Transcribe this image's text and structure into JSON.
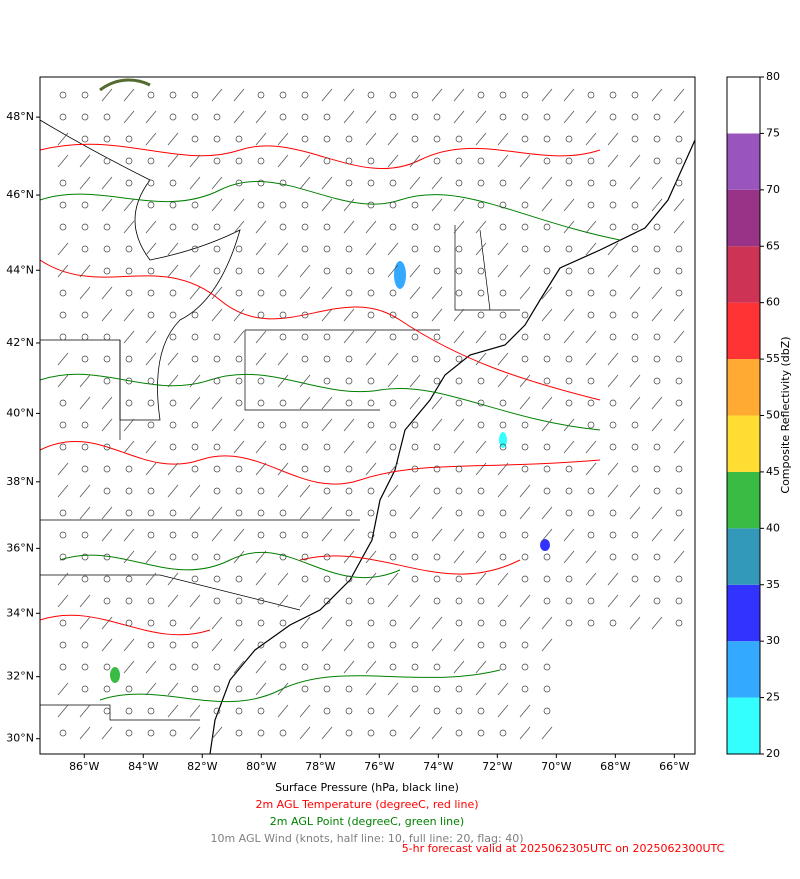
{
  "map": {
    "xlim": [
      -87.5,
      -65.3
    ],
    "ylim": [
      29.5,
      49
    ],
    "xticks": [
      {
        "value": -86,
        "label": "86°W"
      },
      {
        "value": -84,
        "label": "84°W"
      },
      {
        "value": -82,
        "label": "82°W"
      },
      {
        "value": -80,
        "label": "80°W"
      },
      {
        "value": -78,
        "label": "78°W"
      },
      {
        "value": -76,
        "label": "76°W"
      },
      {
        "value": -74,
        "label": "74°W"
      },
      {
        "value": -72,
        "label": "72°W"
      },
      {
        "value": -70,
        "label": "70°W"
      },
      {
        "value": -68,
        "label": "68°W"
      },
      {
        "value": -66,
        "label": "66°W"
      }
    ],
    "yticks": [
      {
        "value": 30,
        "label": "30°N"
      },
      {
        "value": 32,
        "label": "32°N"
      },
      {
        "value": 34,
        "label": "34°N"
      },
      {
        "value": 36,
        "label": "36°N"
      },
      {
        "value": 38,
        "label": "38°N"
      },
      {
        "value": 40,
        "label": "40°N"
      },
      {
        "value": 42,
        "label": "42°N"
      },
      {
        "value": 44,
        "label": "44°N"
      },
      {
        "value": 46,
        "label": "46°N"
      },
      {
        "value": 48,
        "label": "48°N"
      }
    ]
  },
  "colorbar": {
    "label": "Composite Reflectivity (dbZ)",
    "ticks": [
      20,
      25,
      30,
      35,
      40,
      45,
      50,
      55,
      60,
      65,
      70,
      75,
      80
    ],
    "colors": [
      "#33ffff",
      "#33aaff",
      "#3333ff",
      "#3399bb",
      "#39bb44",
      "#ffdd33",
      "#ffaa33",
      "#ff3333",
      "#cc3355",
      "#993388",
      "#9955bb",
      "#ffffff"
    ]
  },
  "captions": [
    {
      "text": "Surface Pressure (hPa, black line)",
      "color": "#000000"
    },
    {
      "text": "2m AGL Temperature (degreeC, red line)",
      "color": "#ff0000"
    },
    {
      "text": "2m AGL Point (degreeC, green line)",
      "color": "#008000"
    },
    {
      "text": "10m AGL Wind (knots, half line: 10, full line: 20, flag: 40)",
      "color": "#808080"
    }
  ],
  "forecast": {
    "text": "5-hr forecast valid at 2025062305UTC on 2025062300UTC",
    "color": "#ff0000"
  }
}
